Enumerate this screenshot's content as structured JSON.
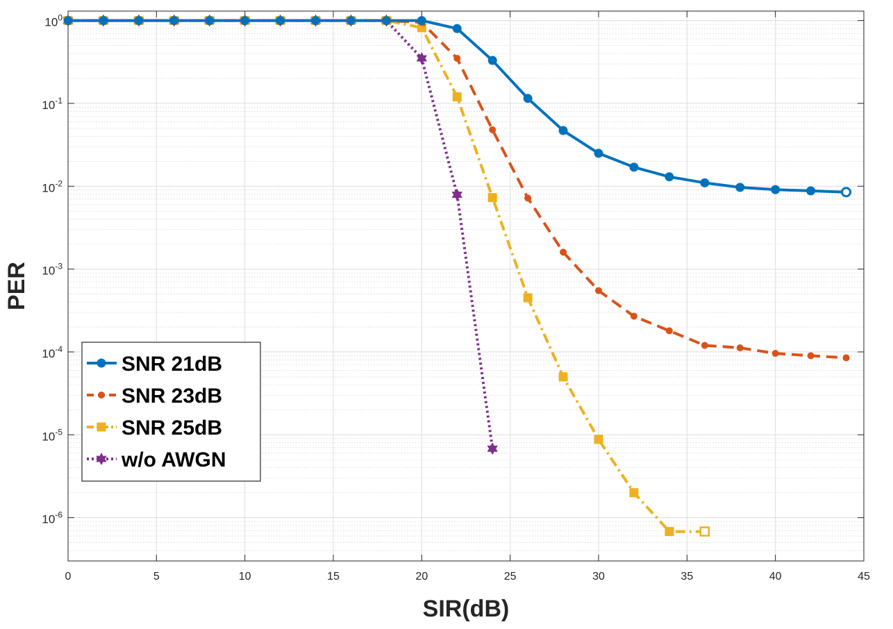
{
  "chart_data": {
    "type": "line",
    "xlabel": "SIR(dB)",
    "ylabel": "PER",
    "xlim": [
      0,
      45
    ],
    "ylim": [
      3e-07,
      1.3
    ],
    "yscale": "log",
    "xticks": [
      0,
      5,
      10,
      15,
      20,
      25,
      30,
      35,
      40,
      45
    ],
    "yticks": [
      {
        "base": "10",
        "exp": "0"
      },
      {
        "base": "10",
        "exp": "-1"
      },
      {
        "base": "10",
        "exp": "-2"
      },
      {
        "base": "10",
        "exp": "-3"
      },
      {
        "base": "10",
        "exp": "-4"
      },
      {
        "base": "10",
        "exp": "-5"
      },
      {
        "base": "10",
        "exp": "-6"
      }
    ],
    "grid": true,
    "legend_position": "bottom-left",
    "series": [
      {
        "name": "SNR 21dB",
        "color": "#0072BD",
        "marker": "circle",
        "linestyle": "solid",
        "x": [
          0,
          2,
          4,
          6,
          8,
          10,
          12,
          14,
          16,
          18,
          20,
          22,
          24,
          26,
          28,
          30,
          32,
          34,
          36,
          38,
          40,
          42,
          44
        ],
        "y": [
          1,
          1,
          1,
          1,
          1,
          1,
          1,
          1,
          1,
          1,
          1,
          0.8,
          0.33,
          0.115,
          0.047,
          0.025,
          0.017,
          0.013,
          0.011,
          0.0097,
          0.0091,
          0.0088,
          0.0085
        ]
      },
      {
        "name": "SNR 23dB",
        "color": "#D95319",
        "marker": "dot",
        "linestyle": "dashed",
        "x": [
          0,
          2,
          4,
          6,
          8,
          10,
          12,
          14,
          16,
          18,
          20,
          22,
          24,
          26,
          28,
          30,
          32,
          34,
          36,
          38,
          40,
          42,
          44
        ],
        "y": [
          1,
          1,
          1,
          1,
          1,
          1,
          1,
          1,
          1,
          1,
          0.95,
          0.35,
          0.048,
          0.0072,
          0.0016,
          0.00055,
          0.00027,
          0.00018,
          0.00012,
          0.000112,
          9.6e-05,
          9e-05,
          8.5e-05
        ]
      },
      {
        "name": "SNR 25dB",
        "color": "#EDB120",
        "marker": "square",
        "linestyle": "dashdot",
        "x": [
          0,
          2,
          4,
          6,
          8,
          10,
          12,
          14,
          16,
          18,
          20,
          22,
          24,
          26,
          28,
          30,
          32,
          34,
          36
        ],
        "y": [
          1,
          1,
          1,
          1,
          1,
          1,
          1,
          1,
          1,
          1,
          0.82,
          0.12,
          0.0073,
          0.00045,
          5e-05,
          8.8e-06,
          2e-06,
          6.8e-07,
          6.8e-07
        ]
      },
      {
        "name": "w/o AWGN",
        "color": "#7E2F8E",
        "marker": "hexagram",
        "linestyle": "dotted",
        "x": [
          0,
          2,
          4,
          6,
          8,
          10,
          12,
          14,
          16,
          18,
          20,
          22,
          24
        ],
        "y": [
          1,
          1,
          1,
          1,
          1,
          1,
          1,
          1,
          1,
          1,
          0.35,
          0.0079,
          6.8e-06
        ]
      }
    ]
  }
}
